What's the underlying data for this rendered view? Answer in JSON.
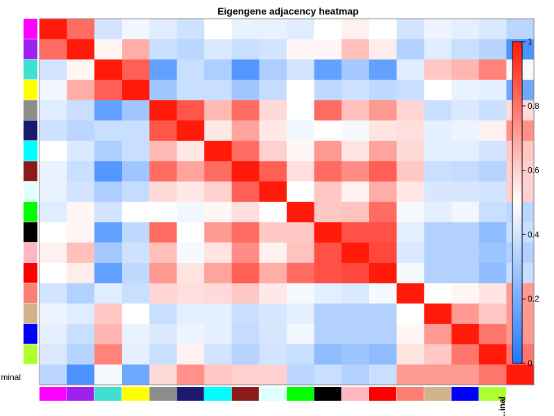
{
  "chart_data": {
    "type": "heatmap",
    "title": "Eigengene adjacency heatmap",
    "row_label": "…minal",
    "col_label": "…inal",
    "module_colors": [
      "#ff00ff",
      "#a020f0",
      "#40e0d0",
      "#ffff00",
      "#8c8c8c",
      "#191970",
      "#00ffff",
      "#8b1a1a",
      "#e0ffff",
      "#00ff00",
      "#000000",
      "#ffb6c1",
      "#ff0000",
      "#fa8072",
      "#d2b48c",
      "#0000ff",
      "#adff2f"
    ],
    "trait_color": "#ffffff",
    "matrix": [
      [
        1.0,
        0.82,
        0.4,
        0.47,
        0.43,
        0.39,
        0.5,
        0.45,
        0.45,
        0.43,
        0.5,
        0.53,
        0.5,
        0.4,
        0.46,
        0.44,
        0.42,
        0.35
      ],
      [
        0.82,
        1.0,
        0.52,
        0.68,
        0.38,
        0.35,
        0.42,
        0.38,
        0.4,
        0.52,
        0.52,
        0.64,
        0.54,
        0.33,
        0.43,
        0.38,
        0.34,
        0.1
      ],
      [
        0.4,
        0.52,
        1.0,
        0.85,
        0.15,
        0.38,
        0.32,
        0.12,
        0.32,
        0.4,
        0.15,
        0.3,
        0.15,
        0.43,
        0.62,
        0.66,
        0.77,
        0.48
      ],
      [
        0.47,
        0.68,
        0.85,
        1.0,
        0.29,
        0.38,
        0.38,
        0.29,
        0.37,
        0.5,
        0.36,
        0.39,
        0.36,
        0.38,
        0.5,
        0.45,
        0.44,
        0.18
      ],
      [
        0.43,
        0.38,
        0.15,
        0.29,
        1.0,
        0.87,
        0.65,
        0.82,
        0.58,
        0.5,
        0.82,
        0.64,
        0.72,
        0.59,
        0.38,
        0.42,
        0.38,
        0.58
      ],
      [
        0.39,
        0.35,
        0.38,
        0.38,
        0.87,
        1.0,
        0.55,
        0.7,
        0.55,
        0.47,
        0.5,
        0.48,
        0.56,
        0.57,
        0.44,
        0.46,
        0.53,
        0.74
      ],
      [
        0.5,
        0.42,
        0.32,
        0.38,
        0.65,
        0.55,
        1.0,
        0.82,
        0.6,
        0.52,
        0.72,
        0.56,
        0.7,
        0.58,
        0.44,
        0.44,
        0.4,
        0.62
      ],
      [
        0.45,
        0.38,
        0.12,
        0.29,
        0.82,
        0.7,
        0.82,
        1.0,
        0.85,
        0.57,
        0.82,
        0.75,
        0.85,
        0.62,
        0.38,
        0.37,
        0.34,
        0.6
      ],
      [
        0.45,
        0.4,
        0.32,
        0.37,
        0.58,
        0.55,
        0.6,
        0.85,
        1.0,
        0.5,
        0.62,
        0.53,
        0.68,
        0.55,
        0.41,
        0.41,
        0.4,
        0.6
      ],
      [
        0.43,
        0.52,
        0.4,
        0.5,
        0.5,
        0.47,
        0.52,
        0.57,
        0.5,
        1.0,
        0.62,
        0.63,
        0.82,
        0.48,
        0.44,
        0.47,
        0.38,
        0.35
      ],
      [
        0.5,
        0.52,
        0.15,
        0.36,
        0.82,
        0.5,
        0.72,
        0.82,
        0.62,
        0.62,
        1.0,
        0.88,
        0.88,
        0.44,
        0.33,
        0.33,
        0.25,
        0.38
      ],
      [
        0.53,
        0.64,
        0.3,
        0.39,
        0.64,
        0.48,
        0.56,
        0.75,
        0.53,
        0.63,
        0.88,
        1.0,
        0.9,
        0.42,
        0.33,
        0.33,
        0.28,
        0.33
      ],
      [
        0.5,
        0.54,
        0.15,
        0.36,
        0.72,
        0.56,
        0.7,
        0.85,
        0.68,
        0.82,
        0.88,
        0.9,
        1.0,
        0.48,
        0.33,
        0.33,
        0.25,
        0.38
      ],
      [
        0.4,
        0.33,
        0.43,
        0.38,
        0.59,
        0.57,
        0.58,
        0.62,
        0.55,
        0.48,
        0.44,
        0.42,
        0.48,
        1.0,
        0.5,
        0.52,
        0.56,
        0.72
      ],
      [
        0.46,
        0.43,
        0.62,
        0.5,
        0.38,
        0.44,
        0.44,
        0.38,
        0.41,
        0.44,
        0.33,
        0.33,
        0.33,
        0.5,
        1.0,
        0.72,
        0.62,
        0.72
      ],
      [
        0.44,
        0.38,
        0.66,
        0.45,
        0.42,
        0.46,
        0.44,
        0.37,
        0.41,
        0.47,
        0.33,
        0.33,
        0.33,
        0.52,
        0.72,
        1.0,
        0.8,
        0.72
      ],
      [
        0.42,
        0.34,
        0.77,
        0.44,
        0.38,
        0.53,
        0.4,
        0.34,
        0.4,
        0.38,
        0.25,
        0.28,
        0.25,
        0.56,
        0.62,
        0.8,
        1.0,
        0.8
      ],
      [
        0.35,
        0.1,
        0.48,
        0.18,
        0.58,
        0.74,
        0.62,
        0.6,
        0.6,
        0.35,
        0.38,
        0.33,
        0.38,
        0.72,
        0.72,
        0.72,
        0.8,
        1.0
      ]
    ],
    "color_scale": {
      "min": 0,
      "max": 1,
      "low": "#1e78ff",
      "mid": "#ffffff",
      "high": "#ff1a0a"
    },
    "colorbar_ticks": [
      "0",
      "0.2",
      "0.4",
      "0.6",
      "0.8",
      "1"
    ],
    "colorbar_tick_values": [
      0,
      0.2,
      0.4,
      0.6,
      0.8,
      1
    ]
  }
}
